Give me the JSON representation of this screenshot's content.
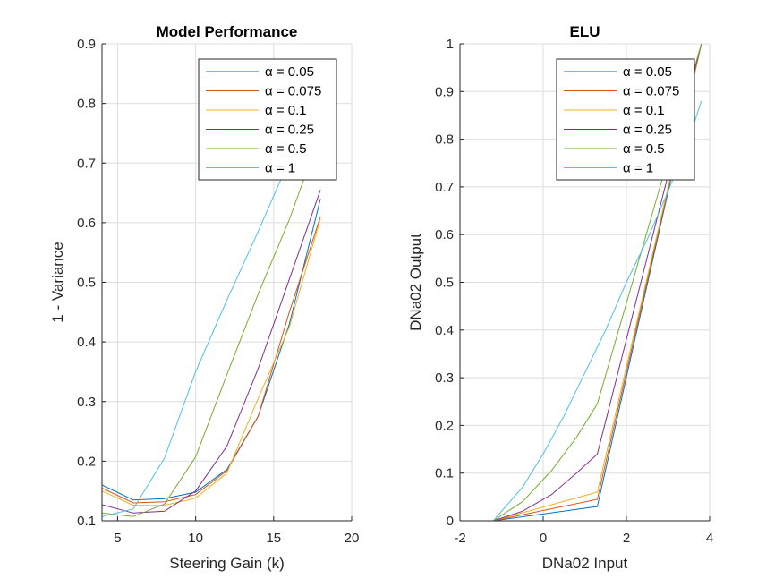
{
  "chart_data": [
    {
      "type": "line",
      "title": "Model Performance",
      "xlabel": "Steering Gain (k)",
      "ylabel": "1 - Variance",
      "xlim": [
        4,
        20
      ],
      "ylim": [
        0.1,
        0.9
      ],
      "xticks": [
        5,
        10,
        15,
        20
      ],
      "yticks": [
        0.1,
        0.2,
        0.3,
        0.4,
        0.5,
        0.6,
        0.7,
        0.8,
        0.9
      ],
      "xtick_labels": [
        "5",
        "10",
        "15",
        "20"
      ],
      "ytick_labels": [
        "0.1",
        "0.2",
        "0.3",
        "0.4",
        "0.5",
        "0.6",
        "0.7",
        "0.8",
        "0.9"
      ],
      "grid": true,
      "legend_position": "top-right",
      "series": [
        {
          "name": "α = 0.05",
          "color": "#0072BD",
          "x": [
            4,
            6,
            8,
            10,
            12,
            14,
            16,
            18
          ],
          "y": [
            0.16,
            0.135,
            0.137,
            0.148,
            0.186,
            0.275,
            0.43,
            0.64
          ]
        },
        {
          "name": "α = 0.075",
          "color": "#D95319",
          "x": [
            4,
            6,
            8,
            10,
            12,
            14,
            16,
            18
          ],
          "y": [
            0.155,
            0.13,
            0.132,
            0.144,
            0.184,
            0.275,
            0.45,
            0.61
          ]
        },
        {
          "name": "α = 0.1",
          "color": "#EDB120",
          "x": [
            4,
            6,
            8,
            10,
            12,
            14,
            16,
            18
          ],
          "y": [
            0.15,
            0.126,
            0.126,
            0.138,
            0.18,
            0.305,
            0.425,
            0.607
          ]
        },
        {
          "name": "α = 0.25",
          "color": "#7E2F8E",
          "x": [
            4,
            6,
            8,
            10,
            12,
            14,
            16,
            18
          ],
          "y": [
            0.127,
            0.113,
            0.116,
            0.15,
            0.225,
            0.355,
            0.505,
            0.655
          ]
        },
        {
          "name": "α = 0.5",
          "color": "#77AC30",
          "x": [
            4,
            6,
            8,
            10,
            12,
            14,
            16,
            18
          ],
          "y": [
            0.113,
            0.107,
            0.128,
            0.207,
            0.345,
            0.48,
            0.605,
            0.75
          ]
        },
        {
          "name": "α = 1",
          "color": "#4DBEEE",
          "x": [
            4,
            6,
            8,
            10,
            12,
            14,
            16,
            18
          ],
          "y": [
            0.107,
            0.12,
            0.205,
            0.35,
            0.47,
            0.585,
            0.705,
            0.81
          ]
        }
      ]
    },
    {
      "type": "line",
      "title": "ELU",
      "xlabel": "DNa02 Input",
      "ylabel": "DNa02 Output",
      "xlim": [
        -2,
        4
      ],
      "ylim": [
        0,
        1
      ],
      "xticks": [
        -2,
        0,
        2,
        4
      ],
      "yticks": [
        0,
        0.1,
        0.2,
        0.3,
        0.4,
        0.5,
        0.6,
        0.7,
        0.8,
        0.9,
        1
      ],
      "xtick_labels": [
        "-2",
        "0",
        "2",
        "4"
      ],
      "ytick_labels": [
        "0",
        "0.1",
        "0.2",
        "0.3",
        "0.4",
        "0.5",
        "0.6",
        "0.7",
        "0.8",
        "0.9",
        "1"
      ],
      "grid": true,
      "legend_position": "top-right",
      "series": [
        {
          "name": "α = 0.05",
          "color": "#0072BD",
          "x": [
            -1.2,
            1.3,
            3.8
          ],
          "y": [
            0.0,
            0.03,
            1.0
          ]
        },
        {
          "name": "α = 0.075",
          "color": "#D95319",
          "x": [
            -1.2,
            1.3,
            3.8
          ],
          "y": [
            0.0,
            0.045,
            1.0
          ]
        },
        {
          "name": "α = 0.1",
          "color": "#EDB120",
          "x": [
            -1.2,
            1.3,
            3.8
          ],
          "y": [
            0.0,
            0.06,
            1.0
          ]
        },
        {
          "name": "α = 0.25",
          "color": "#7E2F8E",
          "x": [
            -1.2,
            -0.5,
            0.2,
            0.8,
            1.3,
            3.8
          ],
          "y": [
            0.0,
            0.02,
            0.055,
            0.1,
            0.14,
            1.0
          ]
        },
        {
          "name": "α = 0.5",
          "color": "#77AC30",
          "x": [
            -1.2,
            -0.5,
            0.2,
            0.8,
            1.3,
            3.8
          ],
          "y": [
            0.0,
            0.04,
            0.105,
            0.175,
            0.245,
            1.0
          ]
        },
        {
          "name": "α = 1",
          "color": "#4DBEEE",
          "x": [
            -1.2,
            -0.5,
            0.0,
            0.5,
            1.0,
            1.5,
            2.0,
            2.5,
            3.0,
            3.5,
            3.8
          ],
          "y": [
            0.0,
            0.07,
            0.14,
            0.22,
            0.31,
            0.4,
            0.5,
            0.59,
            0.69,
            0.8,
            0.88
          ]
        }
      ]
    }
  ]
}
